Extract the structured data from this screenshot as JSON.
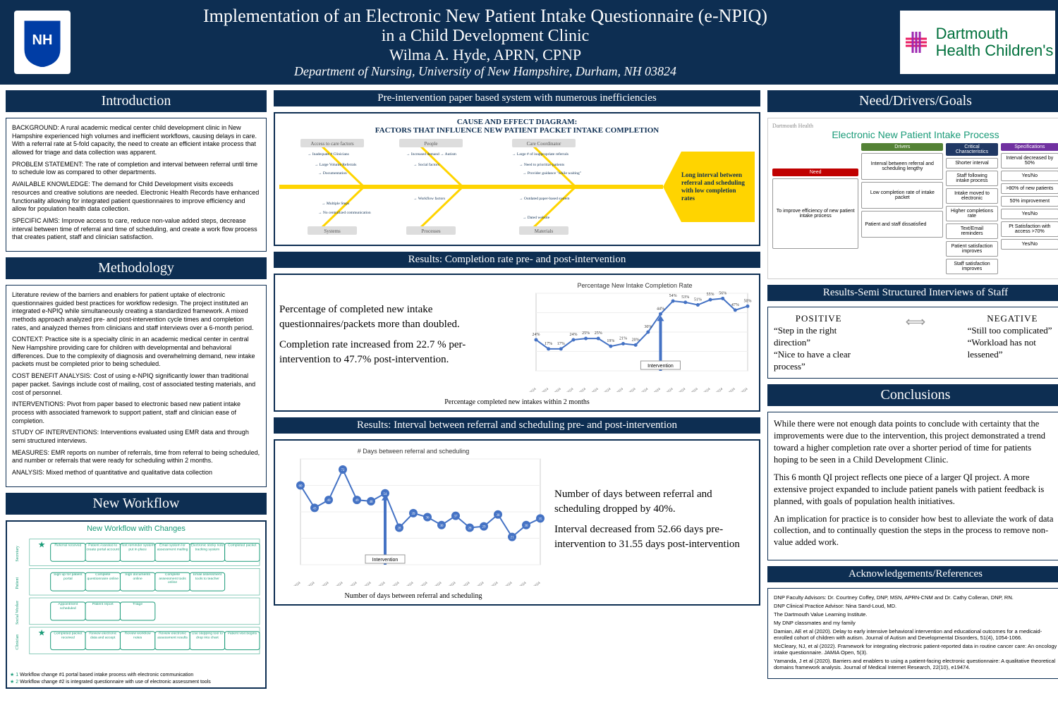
{
  "header": {
    "title1": "Implementation of an Electronic New Patient Intake Questionnaire (e-NPIQ)",
    "title2": "in a Child Development Clinic",
    "author": "Wilma A. Hyde, APRN, CPNP",
    "dept": "Department of Nursing, University of New Hampshire, Durham, NH 03824",
    "dart": "Dartmouth\nHealth Children's"
  },
  "colors": {
    "navy": "#0d2e52",
    "green": "#1a9b78",
    "yellow": "#ffd400",
    "chartblue": "#4472c4",
    "bg": "#ffffff"
  },
  "intro": {
    "head": "Introduction",
    "bg": "BACKGROUND: A rural academic medical center child development clinic in New Hampshire experienced high volumes and inefficient workflows, causing delays in care. With a referral rate at 5-fold capacity, the need to create an efficient intake process that allowed for triage and data collection was apparent.",
    "ps": "PROBLEM STATEMENT: The rate of completion and interval between referral until time to schedule low as compared to other departments.",
    "ak": "AVAILABLE KNOWLEDGE: The demand for Child Development visits exceeds resources and creative solutions are needed. Electronic Health Records have enhanced functionality allowing for integrated patient questionnaires to improve efficiency and allow for population health data collection.",
    "sa": "SPECIFIC AIMS: Improve access to care, reduce non-value added steps, decrease interval between time of referral and time of scheduling, and create a work flow process that creates patient, staff and clinician satisfaction."
  },
  "meth": {
    "head": "Methodology",
    "p1": "Literature review of the barriers and enablers for patient uptake of electronic questionnaires guided best practices for workflow redesign. The project instituted an integrated e-NPIQ while simultaneously creating a standardized framework. A mixed methods approach analyzed pre- and post-intervention cycle times and completion rates, and analyzed themes from clinicians and staff interviews over a 6-month period.",
    "ctx": "CONTEXT: Practice site is a specialty clinic in an academic medical center in central New Hampshire providing care for children with developmental and behavioral differences. Due to the complexity of diagnosis and overwhelming demand, new intake packets must be completed prior to being scheduled.",
    "cba": "COST BENEFIT ANALYSIS: Cost of using e-NPIQ significantly lower than traditional paper packet. Savings include cost of mailing, cost of associated testing materials, and cost of personnel.",
    "int": "INTERVENTIONS: Pivot from paper based to electronic based new patient intake process with associated framework to support patient, staff and clinician ease of completion.",
    "soi": "STUDY OF INTERVENTIONS: Interventions evaluated using EMR data and through semi structured interviews.",
    "mea": "MEASURES: EMR reports on number of referrals, time from referral to being scheduled, and number or referrals that were ready for scheduling within 2 months.",
    "ana": "ANALYSIS: Mixed method of quantitative and qualitative data collection"
  },
  "workflow": {
    "head": "New Workflow",
    "title": "New Workflow with Changes",
    "leg1": "Workflow change #1 portal based intake process with electronic communication",
    "leg2": "Workflow change #2 is integrated questionnaire with use of electronic assessment tools",
    "lanes": [
      "Secretary",
      "Patient",
      "Social Worker",
      "Clinician"
    ],
    "cells_top": [
      "Referral received",
      "Patient Assisted to create portal account",
      "Text reminder system put in place",
      "Email system for assessment mailing",
      "Electronic sticky note tracking system",
      "Completed packet"
    ],
    "cells_pat": [
      "Sign up for patient portal",
      "Complete questionnaire online",
      "Sign documents online",
      "Complete assessment tools online",
      "Email assessment tools to teacher"
    ],
    "cells_sw": [
      "Appointment scheduled",
      "Patient report",
      "Triage"
    ],
    "cells_cl": [
      "Completed packet received",
      "Review electronic data and accept",
      "Review workflow notes",
      "Review electronic assessment results",
      "Use stepping tool to drop into chart",
      "Patient visit begins"
    ]
  },
  "fish": {
    "head": "Pre-intervention paper based system with numerous inefficiencies",
    "title": "CAUSE AND EFFECT DIAGRAM:\nFACTORS THAT INFLUENCE NEW PATIENT PACKET INTAKE COMPLETION",
    "cats_top": [
      "Access to care factors",
      "People",
      "Care Coordinator"
    ],
    "cats_bot": [
      "Systems",
      "Processes",
      "Materials"
    ],
    "out": "Long interval between referral and scheduling with low completion rates"
  },
  "res1": {
    "head": "Results: Completion rate pre- and post-intervention",
    "t1": "Percentage of completed new intake questionnaires/packets more than doubled.",
    "t2": "Completion rate increased from 22.7 % per-intervention to 47.7% post-intervention.",
    "chart_title": "Percentage New Intake Completion Rate",
    "cap": "Percentage completed new intakes within 2 months",
    "intlabel": "Intervention",
    "x": [
      "4/1",
      "4/8",
      "4/15",
      "4/22",
      "4/29",
      "5/6",
      "5/13",
      "5/20",
      "5/27",
      "6/3",
      "6/10",
      "6/17",
      "6/24",
      "7/1",
      "7/8",
      "7/15",
      "7/22",
      "7/29"
    ],
    "y": [
      24,
      17,
      17,
      24,
      25,
      25,
      19,
      21,
      20,
      30,
      44,
      54,
      53,
      51,
      55,
      56,
      47,
      50
    ],
    "labels": [
      "24%",
      "17%",
      "17%",
      "24%",
      "25%",
      "25%",
      "19%",
      "21%",
      "20%",
      "30%",
      "44%",
      "54%",
      "53%",
      "51%",
      "55%",
      "56%",
      "47%",
      "50%"
    ],
    "int_idx": 10,
    "ymax": 60,
    "color": "#4472c4",
    "bg": "#ffffff"
  },
  "res2": {
    "head": "Results: Interval between referral and scheduling pre- and post-intervention",
    "t1": "Number of days between referral and scheduling dropped by 40%.",
    "t2": "Interval decreased from 52.66 days pre-intervention to 31.55 days post-intervention",
    "chart_title": "# Days between referral and scheduling",
    "cap": "Number of days between referral and scheduling",
    "intlabel": "Intervention",
    "x": [
      "4/1",
      "4/8",
      "4/15",
      "4/22",
      "4/29",
      "5/6",
      "5/13",
      "5/20",
      "5/27",
      "6/3",
      "6/10",
      "6/17",
      "6/24",
      "7/1",
      "7/8",
      "7/15",
      "7/22",
      "7/29"
    ],
    "y": [
      60,
      43,
      49,
      72,
      49,
      48,
      54,
      28,
      39,
      36,
      30,
      37,
      28,
      29,
      38,
      21,
      30,
      35
    ],
    "int_idx": 6,
    "ymax": 80,
    "color": "#4472c4",
    "bg": "#ffffff"
  },
  "drivers": {
    "head": "Need/Drivers/Goals",
    "title": "Electronic New Patient Intake Process",
    "brand": "Dartmouth Health",
    "heads": {
      "need": "Need",
      "drivers": "Drivers",
      "cc": "Critical Characteristics",
      "spec": "Specifications",
      "head_colors": {
        "need": "#c00000",
        "drivers": "#548235",
        "cc": "#203864",
        "spec": "#7030a0"
      }
    },
    "need": "To improve efficiency of new patient intake process",
    "driv": [
      "Interval between referral and scheduling lengthy",
      "Low completion rate of intake packet",
      "Patient and staff dissatisfied"
    ],
    "cc": [
      "Shorter interval",
      "Staff following intake process",
      "Intake moved to electronic",
      "Higher completions rate",
      "Text/Email reminders",
      "Patient satisfaction improves",
      "Staff satisfaction improves"
    ],
    "spec": [
      "Interval decreased by 50%",
      "Yes/No",
      ">80% of new patients",
      "50% improvement",
      "Yes/No",
      "Pt Satisfaction with access >70%",
      "Yes/No"
    ]
  },
  "semi": {
    "head": "Results-Semi Structured Interviews of Staff",
    "posh": "POSITIVE",
    "negh": "NEGATIVE",
    "pos": [
      "“Step in the right direction”",
      "“Nice to have a clear process”"
    ],
    "neg": [
      "“Still too complicated”",
      "“Workload has not lessened”"
    ]
  },
  "concl": {
    "head": "Conclusions",
    "p1": "While there were not enough data points to conclude with certainty that the improvements were due to the intervention, this project demonstrated a trend toward a higher completion rate over a shorter period of time for patients hoping to be seen in a Child Development Clinic.",
    "p2": "This 6 month QI project reflects one piece of a larger QI project. A more extensive project expanded to include patient panels with patient feedback is planned, with goals of population health initiatives.",
    "p3": "An implication for practice is to consider how best to alleviate the work of data collection, and to continually question the steps in the process to remove non-value added work."
  },
  "ack": {
    "head": "Acknowledgements/References",
    "l1": "DNP Faculty Advisors: Dr. Courtney Coffey, DNP, MSN, APRN-CNM and Dr. Cathy Colleran, DNP, RN.",
    "l2": "DNP Clinical Practice Advisor: Nina Sand-Loud, MD.",
    "l3": "The Dartmouth Value Learning Institute.",
    "l4": "My DNP classmates and my family",
    "r1": "Damian, AE et al (2020). Delay to early intensive behavioral intervention and educational outcomes for a medicaid-enrolled cohort of children with autism. Journal of Autism and Developmental Disorders, 51(4), 1054-1066.",
    "r2": "McCleary, NJ, et al (2022). Framework for integrating electronic patient-reported data in routine cancer care: An oncology intake questionnaire. JAMIA Open, 5(3).",
    "r3": "Yamanda, J et al (2020). Barriers and enablers to using a patient-facing electronic questionnaire: A qualitative theoretical domains framework analysis. Journal of Medical Internet Research, 22(10), e19474."
  }
}
